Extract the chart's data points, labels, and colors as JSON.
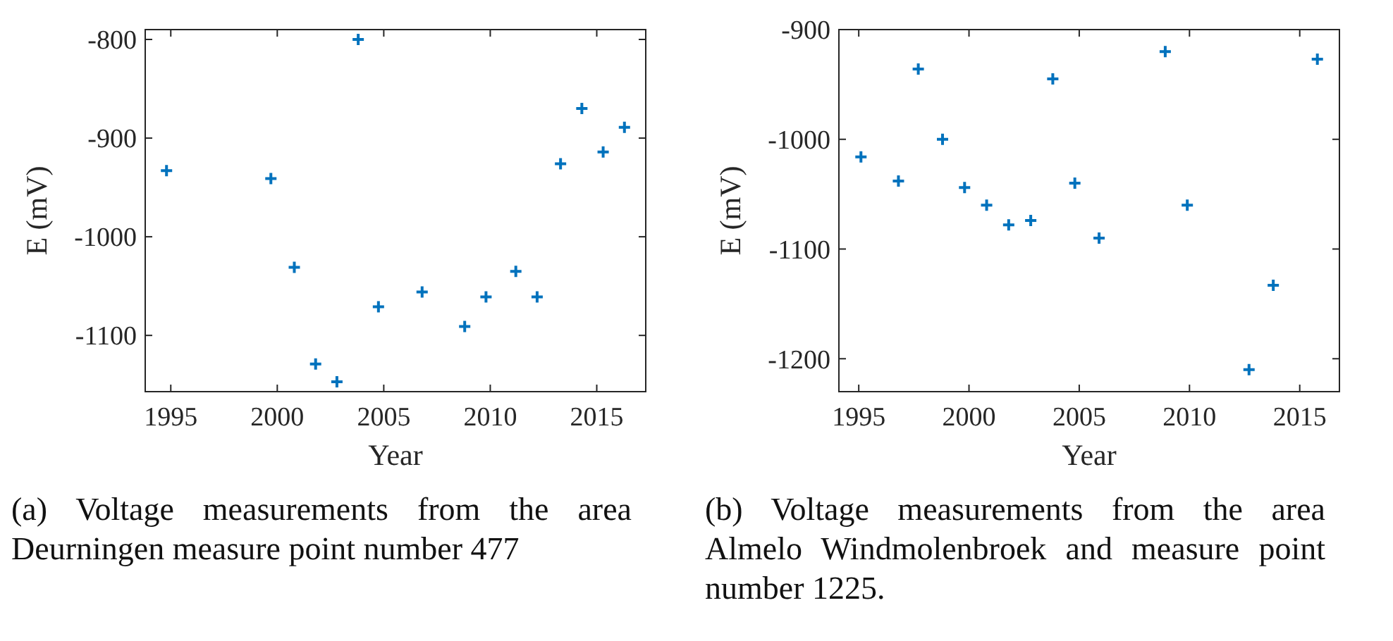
{
  "chart_data": [
    {
      "type": "scatter",
      "xlabel": "Year",
      "ylabel": "E (mV)",
      "marker": "cross",
      "grid": false,
      "xlim": [
        1993.8,
        2017.3
      ],
      "xticks": [
        1995,
        2000,
        2005,
        2010,
        2015
      ],
      "ylim": [
        -1157,
        -790
      ],
      "yticks": [
        -1100,
        -1000,
        -900,
        -800
      ],
      "annotations": [
        "(a) Voltage measurements from the area Deurningen measure point number 477"
      ],
      "series": [
        {
          "color": "#0072bd",
          "x": [
            1994.8,
            1999.7,
            2000.8,
            2001.8,
            2002.8,
            2003.8,
            2004.75,
            2006.8,
            2008.8,
            2009.8,
            2011.2,
            2012.2,
            2013.3,
            2014.3,
            2015.3,
            2016.3
          ],
          "values": [
            -933,
            -941,
            -1031,
            -1129,
            -1147,
            -800,
            -1071,
            -1056,
            -1091,
            -1061,
            -1035,
            -1061,
            -926,
            -870,
            -914,
            -889
          ]
        }
      ]
    },
    {
      "type": "scatter",
      "xlabel": "Year",
      "ylabel": "E (mV)",
      "marker": "cross",
      "grid": false,
      "xlim": [
        1994.1,
        2016.8
      ],
      "xticks": [
        1995,
        2000,
        2005,
        2010,
        2015
      ],
      "ylim": [
        -1230,
        -900
      ],
      "yticks": [
        -1200,
        -1100,
        -1000,
        -900
      ],
      "annotations": [
        "(b) Voltage measurements from the area Almelo Windmolenbroek and measure point number 1225."
      ],
      "series": [
        {
          "color": "#0072bd",
          "x": [
            1995.1,
            1996.8,
            1997.7,
            1998.8,
            1999.8,
            2000.8,
            2001.8,
            2002.8,
            2003.8,
            2004.8,
            2005.9,
            2008.9,
            2009.9,
            2012.7,
            2013.8,
            2015.8
          ],
          "values": [
            -1016,
            -1038,
            -936,
            -1000,
            -1044,
            -1060,
            -1078,
            -1074,
            -945,
            -1040,
            -1090,
            -920,
            -1060,
            -1210,
            -1133,
            -927
          ]
        }
      ]
    }
  ]
}
